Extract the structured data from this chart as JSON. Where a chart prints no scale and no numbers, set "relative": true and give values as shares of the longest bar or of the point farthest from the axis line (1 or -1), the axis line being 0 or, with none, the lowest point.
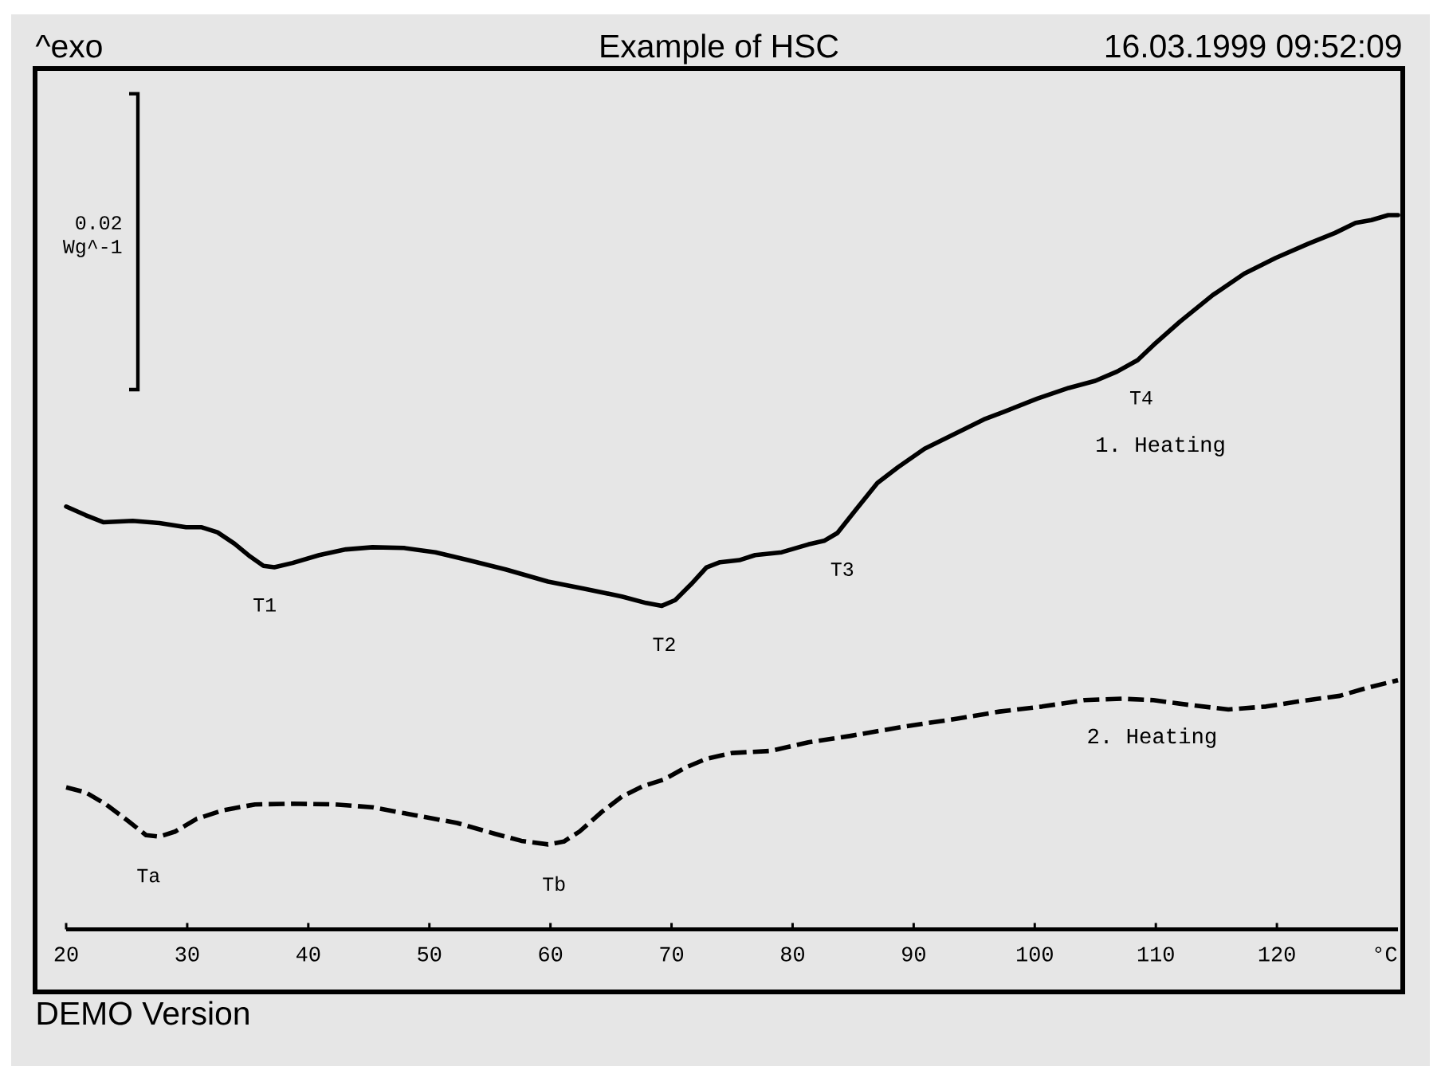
{
  "chart_data": {
    "type": "line",
    "title": "Example of HSC",
    "relative": true,
    "xlabel": "°C",
    "xlim": [
      20,
      130
    ],
    "xticks": [
      20,
      30,
      40,
      50,
      60,
      70,
      80,
      90,
      100,
      110,
      120
    ],
    "series": [
      {
        "name": "1. Heating",
        "color": "#000000",
        "line_style": "solid",
        "x": [
          20.0,
          21.6,
          23.1,
          25.5,
          27.7,
          29.9,
          31.2,
          32.5,
          33.9,
          35.2,
          36.3,
          37.2,
          38.7,
          40.9,
          43.1,
          45.3,
          47.9,
          50.5,
          53.2,
          56.3,
          59.8,
          62.8,
          65.9,
          67.9,
          69.2,
          70.3,
          71.6,
          72.9,
          74.0,
          75.6,
          76.9,
          79.1,
          81.3,
          82.6,
          83.7,
          85.2,
          87.0,
          88.7,
          90.9,
          92.7,
          95.8,
          97.5,
          100.2,
          102.8,
          105.0,
          106.8,
          108.5,
          109.8,
          112.0,
          114.7,
          117.3,
          119.9,
          122.6,
          124.8,
          126.5,
          127.8,
          129.2,
          130.0
        ],
        "values": [
          0.592,
          0.58,
          0.57,
          0.572,
          0.569,
          0.563,
          0.563,
          0.556,
          0.54,
          0.522,
          0.509,
          0.507,
          0.513,
          0.524,
          0.532,
          0.535,
          0.534,
          0.528,
          0.517,
          0.504,
          0.487,
          0.477,
          0.466,
          0.457,
          0.453,
          0.461,
          0.483,
          0.507,
          0.514,
          0.517,
          0.524,
          0.528,
          0.539,
          0.544,
          0.555,
          0.587,
          0.625,
          0.647,
          0.673,
          0.688,
          0.714,
          0.725,
          0.743,
          0.758,
          0.768,
          0.781,
          0.797,
          0.818,
          0.851,
          0.888,
          0.918,
          0.94,
          0.96,
          0.975,
          0.989,
          0.993,
          1.0,
          1.0
        ]
      },
      {
        "name": "2. Heating",
        "color": "#000000",
        "line_style": "dashed",
        "x": [
          20.0,
          21.6,
          23.3,
          25.1,
          26.6,
          27.7,
          29.0,
          30.8,
          33.0,
          35.6,
          38.7,
          42.2,
          45.3,
          48.8,
          52.3,
          55.4,
          57.6,
          59.8,
          61.1,
          62.4,
          64.2,
          65.9,
          67.7,
          69.4,
          71.2,
          72.9,
          75.0,
          78.2,
          81.3,
          84.8,
          89.2,
          93.6,
          97.1,
          100.6,
          104.1,
          107.2,
          109.8,
          112.9,
          116.0,
          119.1,
          122.1,
          125.2,
          127.4,
          130.0
        ],
        "values": [
          0.199,
          0.192,
          0.175,
          0.152,
          0.132,
          0.13,
          0.137,
          0.155,
          0.167,
          0.175,
          0.176,
          0.175,
          0.171,
          0.16,
          0.149,
          0.134,
          0.124,
          0.119,
          0.123,
          0.137,
          0.164,
          0.186,
          0.201,
          0.21,
          0.227,
          0.239,
          0.247,
          0.25,
          0.262,
          0.271,
          0.284,
          0.295,
          0.305,
          0.312,
          0.321,
          0.323,
          0.321,
          0.314,
          0.308,
          0.312,
          0.32,
          0.327,
          0.338,
          0.349
        ]
      }
    ],
    "annotations": [
      "^exo",
      "16.03.1999 09:52:09",
      "DEMO Version",
      "0.02 Wg^-1",
      {
        "text": "T1",
        "x": 36.4,
        "y": 0.51
      },
      {
        "text": "T2",
        "x": 69.4,
        "y": 0.455
      },
      {
        "text": "T3",
        "x": 84.1,
        "y": 0.56
      },
      {
        "text": "T4",
        "x": 108.8,
        "y": 0.8
      },
      {
        "text": "Ta",
        "x": 26.8,
        "y": 0.131
      },
      {
        "text": "Tb",
        "x": 60.3,
        "y": 0.12
      }
    ]
  }
}
